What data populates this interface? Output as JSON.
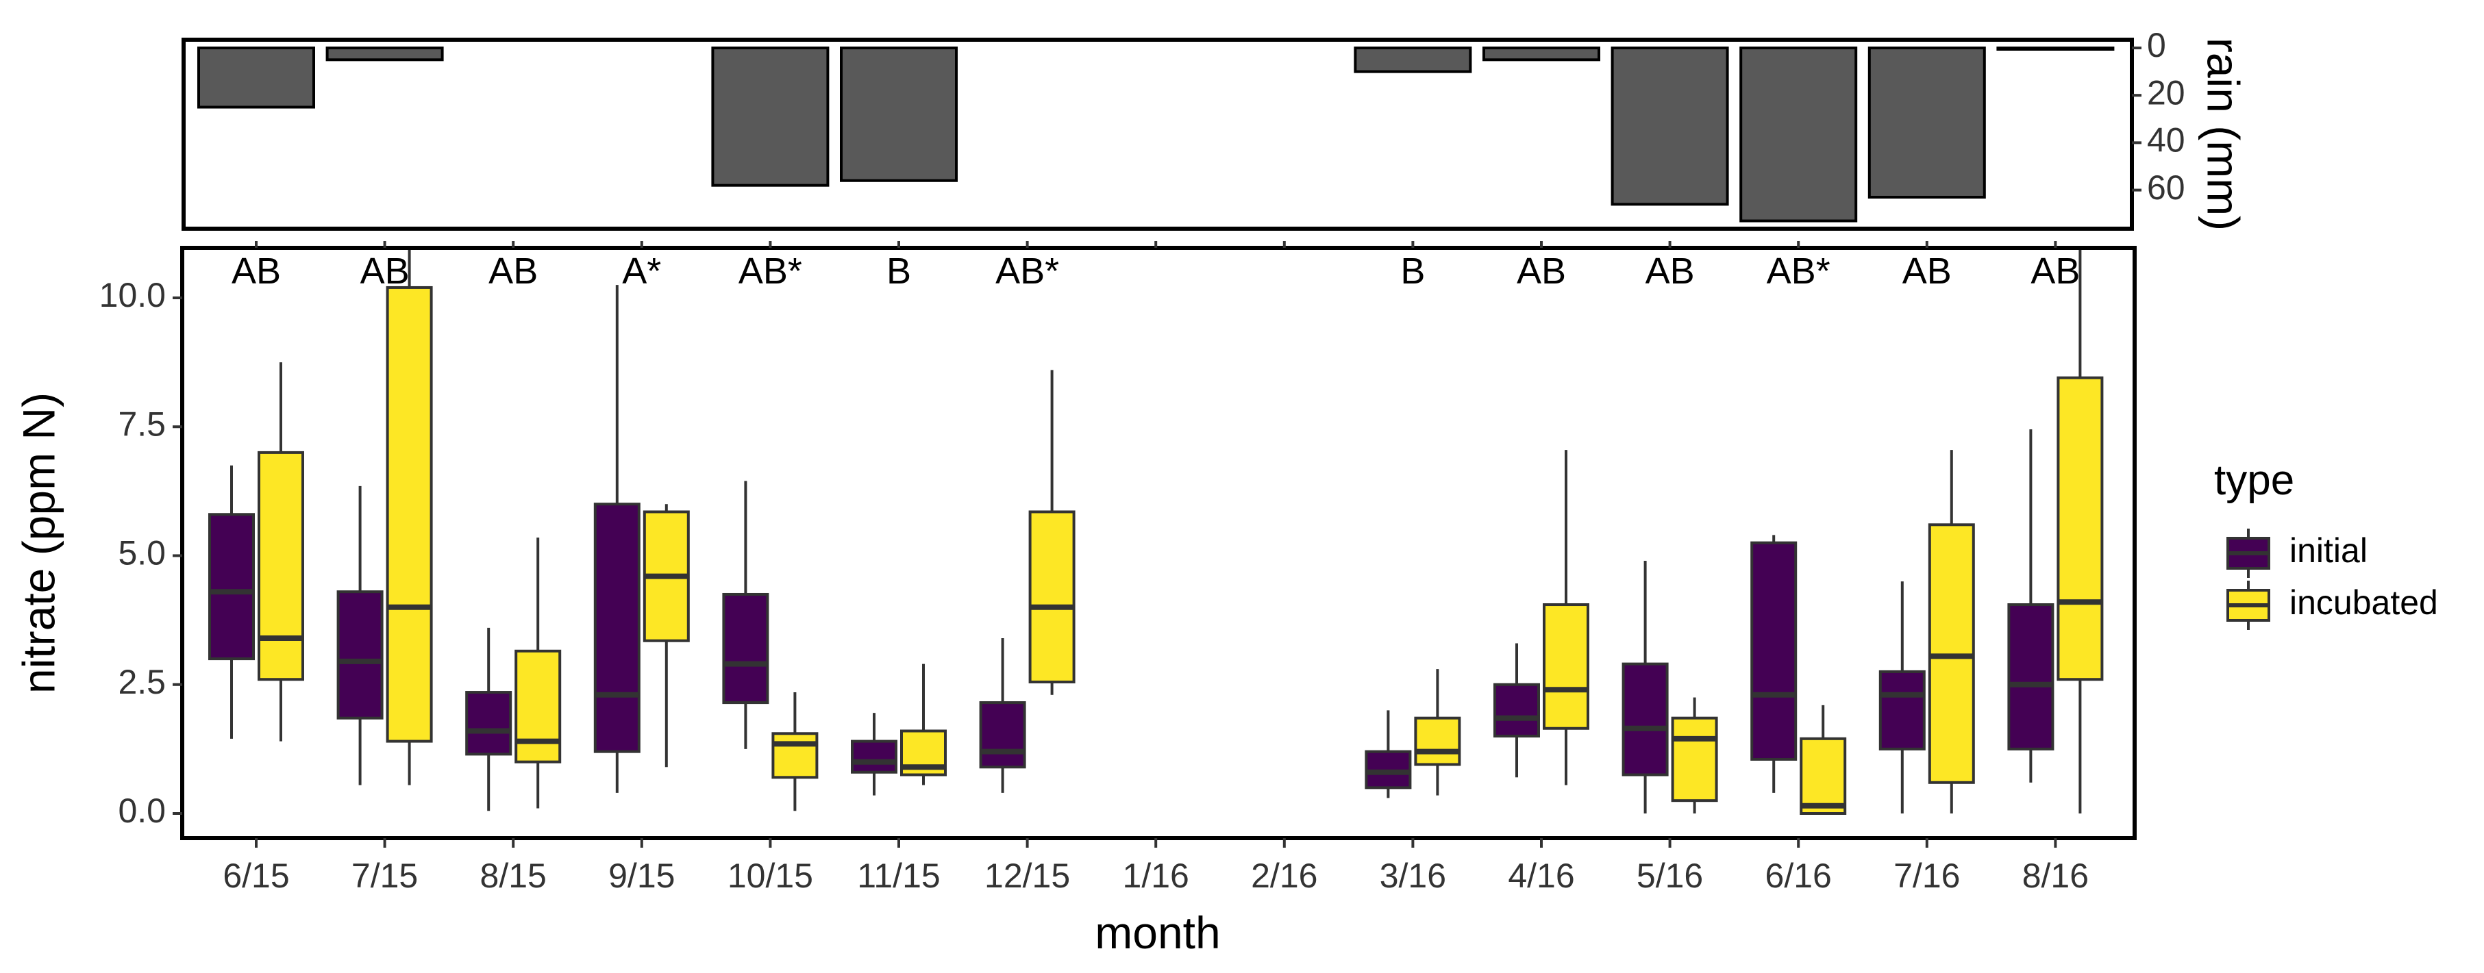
{
  "chart_data": [
    {
      "type": "bar",
      "panel": "rainfall",
      "categories": [
        "6/15",
        "7/15",
        "8/15",
        "9/15",
        "10/15",
        "11/15",
        "12/15",
        "1/16",
        "2/16",
        "3/16",
        "4/16",
        "5/16",
        "6/16",
        "7/16",
        "8/16"
      ],
      "values": [
        25,
        5,
        null,
        null,
        58,
        56,
        null,
        null,
        null,
        10,
        5,
        66,
        73,
        63,
        0.5
      ],
      "ylabel": "rain (mm)",
      "yticks": [
        0,
        20,
        40,
        60
      ],
      "ylim": [
        0,
        76
      ],
      "y_reversed": true,
      "y_axis_side": "right",
      "bar_color": "#595959",
      "grid": false
    },
    {
      "type": "box",
      "panel": "nitrate",
      "categories": [
        "6/15",
        "7/15",
        "8/15",
        "9/15",
        "10/15",
        "11/15",
        "12/15",
        "1/16",
        "2/16",
        "3/16",
        "4/16",
        "5/16",
        "6/16",
        "7/16",
        "8/16"
      ],
      "xlabel": "month",
      "ylabel": "nitrate (ppm N)",
      "yticks": [
        "0.0",
        "2.5",
        "5.0",
        "7.5",
        "10.0"
      ],
      "ylim": [
        -0.25,
        11.0
      ],
      "grid": false,
      "letters": [
        "AB",
        "AB",
        "AB",
        "A*",
        "AB*",
        "B",
        "AB*",
        "",
        "",
        "B",
        "AB",
        "AB",
        "AB*",
        "AB",
        "AB"
      ],
      "legend": {
        "title": "type",
        "position": "right",
        "entries": [
          {
            "label": "initial",
            "color": "#440154"
          },
          {
            "label": "incubated",
            "color": "#FDE725"
          }
        ]
      },
      "series": [
        {
          "name": "initial",
          "color": "#440154",
          "boxes": [
            {
              "min": 1.45,
              "q1": 3.0,
              "median": 4.3,
              "q3": 5.8,
              "max": 6.75
            },
            {
              "min": 0.55,
              "q1": 1.85,
              "median": 2.95,
              "q3": 4.3,
              "max": 6.35
            },
            {
              "min": 0.05,
              "q1": 1.15,
              "median": 1.6,
              "q3": 2.35,
              "max": 3.6
            },
            {
              "min": 0.4,
              "q1": 1.2,
              "median": 2.3,
              "q3": 6.0,
              "max": 10.25
            },
            {
              "min": 1.25,
              "q1": 2.15,
              "median": 2.9,
              "q3": 4.25,
              "max": 6.45
            },
            {
              "min": 0.35,
              "q1": 0.8,
              "median": 1.0,
              "q3": 1.4,
              "max": 1.95
            },
            {
              "min": 0.4,
              "q1": 0.9,
              "median": 1.2,
              "q3": 2.15,
              "max": 3.4
            },
            null,
            null,
            {
              "min": 0.3,
              "q1": 0.5,
              "median": 0.8,
              "q3": 1.2,
              "max": 2.0
            },
            {
              "min": 0.7,
              "q1": 1.5,
              "median": 1.85,
              "q3": 2.5,
              "max": 3.3
            },
            {
              "min": 0.0,
              "q1": 0.75,
              "median": 1.65,
              "q3": 2.9,
              "max": 4.9
            },
            {
              "min": 0.4,
              "q1": 1.05,
              "median": 2.3,
              "q3": 5.25,
              "max": 5.4
            },
            {
              "min": 0.0,
              "q1": 1.25,
              "median": 2.3,
              "q3": 2.75,
              "max": 4.5
            },
            {
              "min": 0.6,
              "q1": 1.25,
              "median": 2.5,
              "q3": 4.05,
              "max": 7.45
            }
          ]
        },
        {
          "name": "incubated",
          "color": "#FDE725",
          "boxes": [
            {
              "min": 1.4,
              "q1": 2.6,
              "median": 3.4,
              "q3": 7.0,
              "max": 8.75
            },
            {
              "min": 0.55,
              "q1": 1.4,
              "median": 4.0,
              "q3": 10.2,
              "max": 11.0
            },
            {
              "min": 0.1,
              "q1": 1.0,
              "median": 1.4,
              "q3": 3.15,
              "max": 5.35
            },
            {
              "min": 0.9,
              "q1": 3.35,
              "median": 4.6,
              "q3": 5.85,
              "max": 6.0
            },
            {
              "min": 0.05,
              "q1": 0.7,
              "median": 1.35,
              "q3": 1.55,
              "max": 2.35
            },
            {
              "min": 0.55,
              "q1": 0.75,
              "median": 0.9,
              "q3": 1.6,
              "max": 2.9
            },
            {
              "min": 2.3,
              "q1": 2.55,
              "median": 4.0,
              "q3": 5.85,
              "max": 8.6
            },
            null,
            null,
            {
              "min": 0.35,
              "q1": 0.95,
              "median": 1.2,
              "q3": 1.85,
              "max": 2.8
            },
            {
              "min": 0.55,
              "q1": 1.65,
              "median": 2.4,
              "q3": 4.05,
              "max": 7.05
            },
            {
              "min": 0.0,
              "q1": 0.25,
              "median": 1.45,
              "q3": 1.85,
              "max": 2.25
            },
            {
              "min": 0.0,
              "q1": 0.0,
              "median": 0.15,
              "q3": 1.45,
              "max": 2.1
            },
            {
              "min": 0.0,
              "q1": 0.6,
              "median": 3.05,
              "q3": 5.6,
              "max": 7.05
            },
            {
              "min": 0.0,
              "q1": 2.6,
              "median": 4.1,
              "q3": 8.45,
              "max": 11.0
            }
          ]
        }
      ]
    }
  ]
}
